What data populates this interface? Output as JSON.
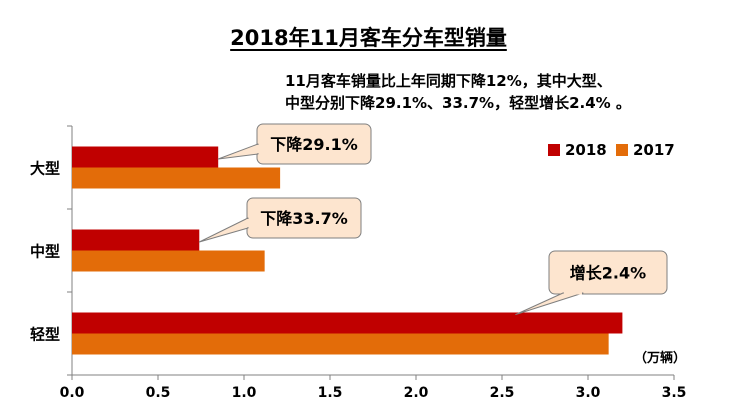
{
  "chart_data": {
    "type": "bar",
    "orientation": "horizontal",
    "title": "2018年11月客车分车型销量",
    "subtitle_lines": [
      "11月客车销量比上年同期下降12%，其中大型、",
      "中型分别下降29.1%、33.7%，轻型增长2.4% 。"
    ],
    "categories": [
      "大型",
      "中型",
      "轻型"
    ],
    "series": [
      {
        "name": "2018",
        "color": "#c00000",
        "values": [
          0.85,
          0.74,
          3.2
        ]
      },
      {
        "name": "2017",
        "color": "#e36c09",
        "values": [
          1.21,
          1.12,
          3.12
        ]
      }
    ],
    "xlim": [
      0,
      3.5
    ],
    "xticks": [
      "0.0",
      "0.5",
      "1.0",
      "1.5",
      "2.0",
      "2.5",
      "3.0",
      "3.5"
    ],
    "unit_label": "（万辆）",
    "legend_position": "top-right",
    "callouts": [
      {
        "category": "大型",
        "text": "下降29.1%"
      },
      {
        "category": "中型",
        "text": "下降33.7%"
      },
      {
        "category": "轻型",
        "text": "增长2.4%"
      }
    ],
    "callout_fill": "#fde5cf",
    "callout_stroke": "#7f7f7f"
  }
}
